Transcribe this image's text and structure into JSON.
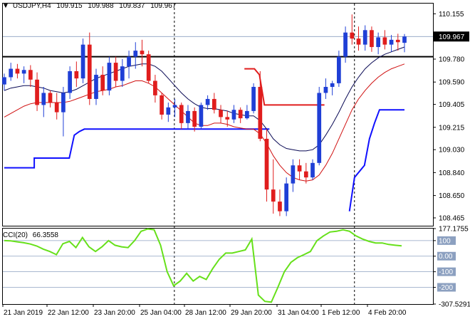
{
  "header": {
    "menu_icon": "triangle-down-icon",
    "symbol": "USDJPY,H4",
    "open": "109.915",
    "high": "109.988",
    "low": "109.837",
    "close": "109.967"
  },
  "price_axis": {
    "ticks": [
      "110.155",
      "109.780",
      "109.590",
      "109.405",
      "109.215",
      "109.030",
      "108.840",
      "108.650",
      "108.465"
    ],
    "tick_values": [
      110.155,
      109.78,
      109.59,
      109.405,
      109.215,
      109.03,
      108.84,
      108.65,
      108.465
    ],
    "current_price_label": "109.967",
    "current_price": 109.967,
    "range": [
      108.4,
      110.24
    ]
  },
  "cci": {
    "label": "CCI(20)",
    "value": "66.3558",
    "axis_labels": [
      "177.1755",
      "100",
      "0.00",
      "-100",
      "-200",
      "-307.5291"
    ],
    "axis_values": [
      177.18,
      100,
      0,
      -100,
      -200,
      -307.53
    ],
    "levels": [
      100,
      0,
      -100,
      -200
    ],
    "range": [
      -307.5291,
      177.1755
    ],
    "values": [
      100,
      98,
      92,
      86,
      78,
      65,
      45,
      30,
      10,
      80,
      95,
      55,
      120,
      60,
      30,
      60,
      100,
      70,
      60,
      55,
      100,
      160,
      175,
      170,
      70,
      -100,
      -190,
      -160,
      -110,
      -160,
      -130,
      -150,
      -80,
      -20,
      20,
      20,
      30,
      40,
      110,
      -250,
      -290,
      -295,
      -200,
      -100,
      -40,
      -10,
      10,
      30,
      100,
      130,
      155,
      160,
      170,
      160,
      130,
      110,
      95,
      85,
      85,
      75,
      70,
      66
    ]
  },
  "time_axis": {
    "labels": [
      "21 Jan 2019",
      "22 Jan 12:00",
      "23 Jan 20:00",
      "25 Jan 04:00",
      "28 Jan 12:00",
      "29 Jan 20:00",
      "31 Jan 04:00",
      "1 Feb 12:00",
      "4 Feb 20:00"
    ]
  },
  "colors": {
    "background": "#ffffff",
    "bull_candle": "#1f3fd6",
    "bear_candle": "#e01d1d",
    "ma_black": "#0a0a55",
    "ma_red": "#d01010",
    "support_blue": "#1010ff",
    "resistance_line": "#000000",
    "cci_line": "#66e01a",
    "grid_level": "#8ca0c0",
    "separator": "#000000"
  },
  "chart_data": {
    "type": "candlestick",
    "symbol": "USDJPY",
    "timeframe": "H4",
    "ohlc": [
      [
        109.57,
        109.66,
        109.52,
        109.63
      ],
      [
        109.63,
        109.75,
        109.6,
        109.7
      ],
      [
        109.7,
        109.74,
        109.62,
        109.66
      ],
      [
        109.66,
        109.72,
        109.58,
        109.69
      ],
      [
        109.69,
        109.73,
        109.55,
        109.61
      ],
      [
        109.61,
        109.67,
        109.35,
        109.4
      ],
      [
        109.4,
        109.55,
        109.3,
        109.5
      ],
      [
        109.5,
        109.52,
        109.38,
        109.42
      ],
      [
        109.42,
        109.5,
        109.28,
        109.34
      ],
      [
        109.34,
        109.55,
        109.14,
        109.5
      ],
      [
        109.5,
        109.72,
        109.45,
        109.68
      ],
      [
        109.68,
        109.76,
        109.55,
        109.62
      ],
      [
        109.62,
        109.95,
        109.58,
        109.9
      ],
      [
        109.9,
        110.0,
        109.4,
        109.45
      ],
      [
        109.45,
        109.7,
        109.4,
        109.65
      ],
      [
        109.65,
        109.72,
        109.48,
        109.52
      ],
      [
        109.52,
        109.8,
        109.48,
        109.75
      ],
      [
        109.75,
        109.8,
        109.55,
        109.6
      ],
      [
        109.6,
        109.78,
        109.55,
        109.72
      ],
      [
        109.72,
        109.85,
        109.62,
        109.8
      ],
      [
        109.8,
        109.92,
        109.7,
        109.85
      ],
      [
        109.85,
        109.94,
        109.72,
        109.82
      ],
      [
        109.82,
        109.85,
        109.58,
        109.6
      ],
      [
        109.6,
        109.65,
        109.42,
        109.48
      ],
      [
        109.48,
        109.5,
        109.28,
        109.32
      ],
      [
        109.32,
        109.42,
        109.26,
        109.38
      ],
      [
        109.38,
        109.45,
        109.3,
        109.4
      ],
      [
        109.4,
        109.42,
        109.2,
        109.25
      ],
      [
        109.25,
        109.4,
        109.2,
        109.35
      ],
      [
        109.35,
        109.38,
        109.18,
        109.22
      ],
      [
        109.22,
        109.42,
        109.2,
        109.4
      ],
      [
        109.4,
        109.48,
        109.36,
        109.45
      ],
      [
        109.45,
        109.5,
        109.33,
        109.36
      ],
      [
        109.36,
        109.4,
        109.25,
        109.3
      ],
      [
        109.3,
        109.35,
        109.22,
        109.28
      ],
      [
        109.28,
        109.4,
        109.25,
        109.36
      ],
      [
        109.36,
        109.38,
        109.25,
        109.29
      ],
      [
        109.29,
        109.4,
        109.28,
        109.35
      ],
      [
        109.35,
        109.58,
        109.33,
        109.55
      ],
      [
        109.55,
        109.68,
        109.1,
        109.12
      ],
      [
        109.12,
        109.2,
        108.6,
        108.7
      ],
      [
        108.7,
        108.95,
        108.5,
        108.6
      ],
      [
        108.6,
        108.7,
        108.48,
        108.52
      ],
      [
        108.52,
        108.8,
        108.48,
        108.75
      ],
      [
        108.75,
        108.95,
        108.68,
        108.9
      ],
      [
        108.9,
        108.95,
        108.78,
        108.85
      ],
      [
        108.85,
        108.92,
        108.75,
        108.8
      ],
      [
        108.8,
        108.95,
        108.78,
        108.92
      ],
      [
        108.92,
        109.55,
        108.9,
        109.5
      ],
      [
        109.5,
        109.62,
        109.45,
        109.55
      ],
      [
        109.55,
        109.6,
        109.48,
        109.58
      ],
      [
        109.58,
        109.85,
        109.55,
        109.8
      ],
      [
        109.8,
        110.05,
        109.75,
        110.0
      ],
      [
        110.0,
        110.15,
        109.9,
        109.95
      ],
      [
        109.95,
        110.05,
        109.85,
        109.9
      ],
      [
        109.9,
        110.06,
        109.85,
        110.02
      ],
      [
        110.02,
        110.05,
        109.84,
        109.88
      ],
      [
        109.88,
        110.0,
        109.82,
        109.96
      ],
      [
        109.96,
        110.02,
        109.86,
        109.9
      ],
      [
        109.9,
        109.98,
        109.84,
        109.94
      ],
      [
        109.94,
        109.99,
        109.85,
        109.92
      ],
      [
        109.915,
        109.988,
        109.837,
        109.967
      ]
    ],
    "ma_black": [
      109.52,
      109.54,
      109.55,
      109.56,
      109.56,
      109.55,
      109.54,
      109.52,
      109.51,
      109.5,
      109.51,
      109.53,
      109.56,
      109.59,
      109.62,
      109.64,
      109.66,
      109.68,
      109.7,
      109.72,
      109.73,
      109.74,
      109.74,
      109.72,
      109.68,
      109.62,
      109.56,
      109.5,
      109.45,
      109.41,
      109.38,
      109.37,
      109.37,
      109.36,
      109.35,
      109.33,
      109.32,
      109.31,
      109.31,
      109.27,
      109.2,
      109.12,
      109.07,
      109.04,
      109.03,
      109.02,
      109.02,
      109.03,
      109.07,
      109.15,
      109.24,
      109.34,
      109.45,
      109.55,
      109.63,
      109.7,
      109.75,
      109.79,
      109.82,
      109.84,
      109.86,
      109.88
    ],
    "ma_red": [
      109.3,
      109.33,
      109.36,
      109.39,
      109.41,
      109.42,
      109.42,
      109.42,
      109.42,
      109.42,
      109.43,
      109.45,
      109.47,
      109.49,
      109.51,
      109.52,
      109.53,
      109.55,
      109.56,
      109.58,
      109.6,
      109.6,
      109.58,
      109.55,
      109.5,
      109.45,
      109.4,
      109.35,
      109.3,
      109.25,
      109.23,
      109.23,
      109.25,
      109.25,
      109.24,
      109.22,
      109.21,
      109.2,
      109.2,
      109.16,
      109.08,
      108.98,
      108.9,
      108.84,
      108.8,
      108.78,
      108.77,
      108.78,
      108.82,
      108.9,
      109.0,
      109.12,
      109.24,
      109.36,
      109.45,
      109.52,
      109.58,
      109.63,
      109.67,
      109.7,
      109.72,
      109.74
    ],
    "resistance_level": 109.8,
    "support_blue_steps": [
      [
        0,
        108.88
      ],
      [
        6,
        108.88
      ],
      [
        6,
        108.96
      ],
      [
        13,
        108.96
      ],
      [
        14,
        109.15
      ],
      [
        15,
        109.18
      ],
      [
        16,
        109.2
      ],
      [
        53,
        109.2
      ]
    ],
    "support_blue_late": [
      [
        69,
        108.52
      ],
      [
        70,
        108.8
      ],
      [
        72,
        108.9
      ],
      [
        73,
        109.12
      ],
      [
        74,
        109.25
      ],
      [
        75,
        109.36
      ],
      [
        80,
        109.36
      ]
    ],
    "red_step": [
      [
        48,
        109.7
      ],
      [
        50,
        109.7
      ],
      [
        51,
        109.65
      ],
      [
        52,
        109.4
      ],
      [
        64,
        109.4
      ]
    ],
    "vertical_markers_index": [
      34,
      70
    ]
  }
}
